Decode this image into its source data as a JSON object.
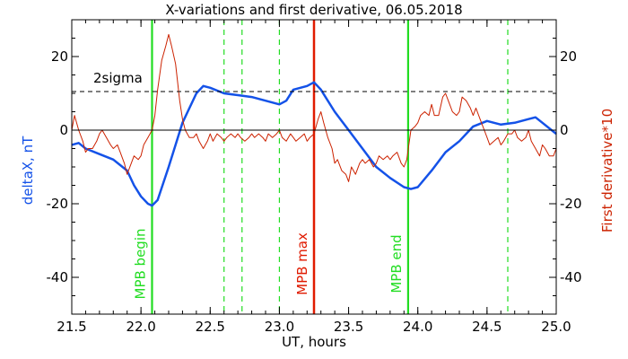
{
  "chart_data": {
    "type": "line",
    "title": "X-variations and first derivative, 06.05.2018",
    "xlabel": "UT, hours",
    "ylabel_left": "deltaX, nT",
    "ylabel_right": "First derivative*10",
    "xlim": [
      21.5,
      25.0
    ],
    "ylim": [
      -50,
      30
    ],
    "x_ticks": [
      21.5,
      22.0,
      22.5,
      23.0,
      23.5,
      24.0,
      24.5,
      25.0
    ],
    "x_tick_labels": [
      "21.5",
      "22.0",
      "22.5",
      "23.0",
      "23.5",
      "24.0",
      "24.5",
      "25.0"
    ],
    "y_ticks": [
      -40,
      -20,
      0,
      20
    ],
    "y_tick_labels": [
      "-40",
      "-20",
      "0",
      "20"
    ],
    "grid": false,
    "colors": {
      "deltaX": "#1452e8",
      "derivative": "#cc2200",
      "mpb_line": "#22dd22",
      "mpb_max_line": "#e01a00",
      "axis": "#000000"
    },
    "sigma_level": {
      "value": 10.5,
      "label": "2sigma"
    },
    "zero_line": 0,
    "markers": [
      {
        "x": 22.08,
        "label": "MPB begin",
        "color": "#22dd22",
        "style": "solid"
      },
      {
        "x": 23.25,
        "label": "MPB max",
        "color": "#e01a00",
        "style": "solid"
      },
      {
        "x": 23.93,
        "label": "MPB end",
        "color": "#22dd22",
        "style": "solid"
      }
    ],
    "dashed_markers": [
      22.6,
      22.73,
      23.0,
      24.65
    ],
    "series": [
      {
        "key": "deltaX",
        "x": [
          21.5,
          21.55,
          21.6,
          21.7,
          21.8,
          21.9,
          21.95,
          22.0,
          22.05,
          22.08,
          22.12,
          22.2,
          22.3,
          22.4,
          22.45,
          22.5,
          22.6,
          22.7,
          22.8,
          22.9,
          23.0,
          23.05,
          23.1,
          23.2,
          23.25,
          23.3,
          23.4,
          23.5,
          23.6,
          23.7,
          23.8,
          23.9,
          23.95,
          24.0,
          24.1,
          24.2,
          24.3,
          24.4,
          24.5,
          24.6,
          24.7,
          24.8,
          24.85,
          24.9,
          25.0
        ],
        "values": [
          -4,
          -3.5,
          -5,
          -6.5,
          -8,
          -11,
          -15,
          -18,
          -20,
          -20.5,
          -19,
          -10,
          2,
          10,
          12,
          11.5,
          10,
          9.5,
          9,
          8,
          7,
          8,
          11,
          12,
          13,
          11,
          5,
          0,
          -5,
          -10,
          -13,
          -15.5,
          -16,
          -15.5,
          -11,
          -6,
          -3,
          1,
          2.5,
          1.5,
          2,
          3,
          3.5,
          2,
          -1
        ]
      },
      {
        "key": "derivative",
        "x": [
          21.5,
          21.52,
          21.55,
          21.58,
          21.6,
          21.62,
          21.65,
          21.68,
          21.7,
          21.72,
          21.75,
          21.78,
          21.8,
          21.83,
          21.85,
          21.88,
          21.9,
          21.93,
          21.95,
          21.98,
          22.0,
          22.02,
          22.05,
          22.08,
          22.1,
          22.12,
          22.15,
          22.18,
          22.2,
          22.22,
          22.25,
          22.28,
          22.3,
          22.32,
          22.35,
          22.38,
          22.4,
          22.42,
          22.45,
          22.48,
          22.5,
          22.52,
          22.55,
          22.58,
          22.6,
          22.62,
          22.65,
          22.68,
          22.7,
          22.72,
          22.75,
          22.78,
          22.8,
          22.82,
          22.85,
          22.88,
          22.9,
          22.92,
          22.95,
          22.98,
          23.0,
          23.02,
          23.05,
          23.08,
          23.1,
          23.12,
          23.15,
          23.18,
          23.2,
          23.22,
          23.25,
          23.28,
          23.3,
          23.32,
          23.35,
          23.38,
          23.4,
          23.42,
          23.45,
          23.48,
          23.5,
          23.52,
          23.55,
          23.58,
          23.6,
          23.62,
          23.65,
          23.68,
          23.7,
          23.72,
          23.75,
          23.78,
          23.8,
          23.82,
          23.85,
          23.88,
          23.9,
          23.92,
          23.95,
          23.98,
          24.0,
          24.02,
          24.05,
          24.08,
          24.1,
          24.12,
          24.15,
          24.18,
          24.2,
          24.22,
          24.25,
          24.28,
          24.3,
          24.32,
          24.35,
          24.38,
          24.4,
          24.42,
          24.45,
          24.48,
          24.5,
          24.52,
          24.55,
          24.58,
          24.6,
          24.62,
          24.65,
          24.68,
          24.7,
          24.72,
          24.75,
          24.78,
          24.8,
          24.82,
          24.85,
          24.88,
          24.9,
          24.92,
          24.95,
          24.98,
          25.0
        ],
        "values": [
          0,
          4,
          0,
          -3,
          -6,
          -5,
          -5,
          -3,
          -1,
          0,
          -2,
          -4,
          -5,
          -4,
          -6,
          -9,
          -12,
          -9,
          -7,
          -8,
          -7,
          -4,
          -2,
          0,
          4,
          11,
          19,
          23,
          26,
          23,
          18,
          8,
          3,
          0,
          -2,
          -2,
          -1,
          -3,
          -5,
          -3,
          -1,
          -3,
          -1,
          -2,
          -3,
          -2,
          -1,
          -2,
          -1,
          -2,
          -3,
          -2,
          -1,
          -2,
          -1,
          -2,
          -3,
          -1,
          -2,
          -1,
          0,
          -2,
          -3,
          -1,
          -2,
          -3,
          -2,
          -1,
          -3,
          -2,
          -1,
          3,
          5,
          2,
          -2,
          -5,
          -9,
          -8,
          -11,
          -12,
          -14,
          -10,
          -12,
          -9,
          -8,
          -9,
          -8,
          -10,
          -9,
          -7,
          -8,
          -7,
          -8,
          -7,
          -6,
          -9,
          -10,
          -8,
          0,
          1,
          2,
          4,
          5,
          4,
          7,
          4,
          4,
          9,
          10,
          8,
          5,
          4,
          5,
          9,
          8,
          6,
          4,
          6,
          3,
          0,
          -2,
          -4,
          -3,
          -2,
          -4,
          -3,
          -1,
          -1,
          0,
          -2,
          -3,
          -2,
          0,
          -3,
          -5,
          -7,
          -4,
          -5,
          -7,
          -7,
          -5
        ]
      }
    ]
  }
}
